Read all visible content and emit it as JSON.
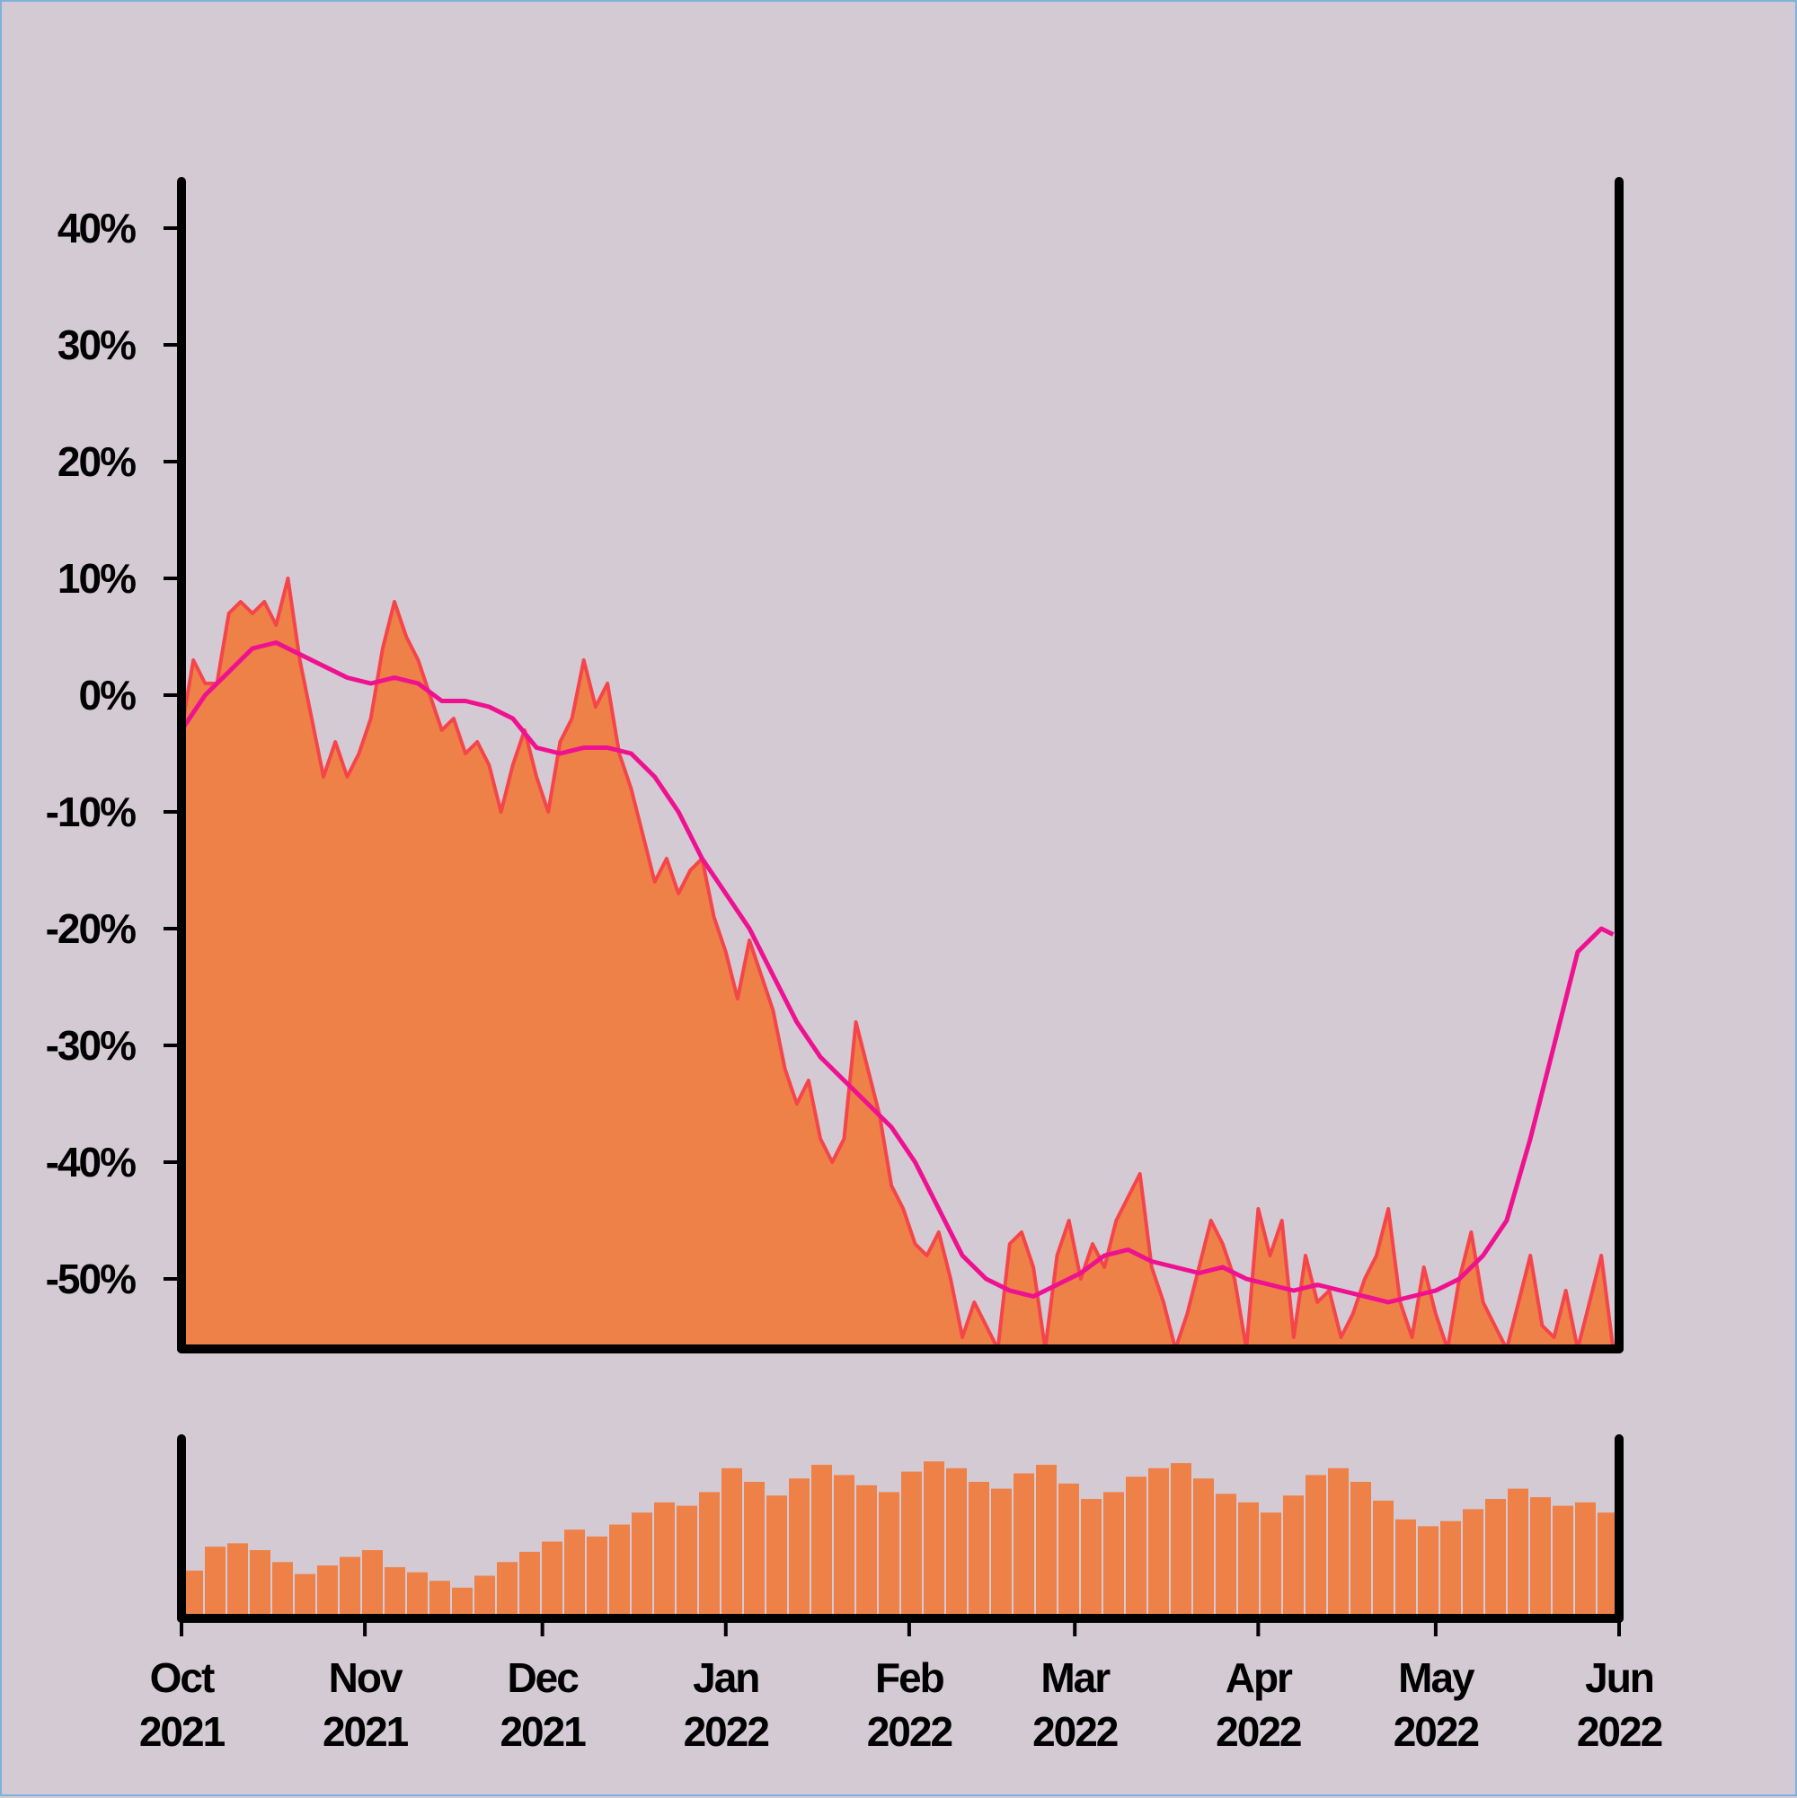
{
  "chart_data": {
    "type": "area",
    "colors": {
      "background": "#d4cad3",
      "area_fill": "#ee8147",
      "area_edge": "#f5454a",
      "moving_average": "#ee1290",
      "volume": "#ee8147",
      "axes": "#000000"
    },
    "y_axis": {
      "unit": "%",
      "ylim": [
        -56,
        44
      ],
      "ticks": [
        40,
        30,
        20,
        10,
        0,
        -10,
        -20,
        -30,
        -40,
        -50
      ],
      "tick_labels": [
        "40%",
        "30%",
        "20%",
        "10%",
        "0%",
        "-10%",
        "-20%",
        "-30%",
        "-40%",
        "-50%"
      ]
    },
    "x_axis": {
      "range": [
        "2021-10-01",
        "2022-06-01"
      ],
      "ticks": [
        {
          "date": "2021-10-01",
          "month": "Oct",
          "year": "2021"
        },
        {
          "date": "2021-11-01",
          "month": "Nov",
          "year": "2021"
        },
        {
          "date": "2021-12-01",
          "month": "Dec",
          "year": "2021"
        },
        {
          "date": "2022-01-01",
          "month": "Jan",
          "year": "2022"
        },
        {
          "date": "2022-02-01",
          "month": "Feb",
          "year": "2022"
        },
        {
          "date": "2022-03-01",
          "month": "Mar",
          "year": "2022"
        },
        {
          "date": "2022-04-01",
          "month": "Apr",
          "year": "2022"
        },
        {
          "date": "2022-05-01",
          "month": "May",
          "year": "2022"
        },
        {
          "date": "2022-06-01",
          "month": "Jun",
          "year": "2022"
        }
      ]
    },
    "series": [
      {
        "type": "area",
        "values": [
          [
            "2021-10-01",
            -3
          ],
          [
            "2021-10-03",
            3
          ],
          [
            "2021-10-05",
            1
          ],
          [
            "2021-10-07",
            1
          ],
          [
            "2021-10-09",
            7
          ],
          [
            "2021-10-11",
            8
          ],
          [
            "2021-10-13",
            7
          ],
          [
            "2021-10-15",
            8
          ],
          [
            "2021-10-17",
            6
          ],
          [
            "2021-10-19",
            10
          ],
          [
            "2021-10-21",
            3
          ],
          [
            "2021-10-23",
            -2
          ],
          [
            "2021-10-25",
            -7
          ],
          [
            "2021-10-27",
            -4
          ],
          [
            "2021-10-29",
            -7
          ],
          [
            "2021-10-31",
            -5
          ],
          [
            "2021-11-02",
            -2
          ],
          [
            "2021-11-04",
            4
          ],
          [
            "2021-11-06",
            8
          ],
          [
            "2021-11-08",
            5
          ],
          [
            "2021-11-10",
            3
          ],
          [
            "2021-11-12",
            0
          ],
          [
            "2021-11-14",
            -3
          ],
          [
            "2021-11-16",
            -2
          ],
          [
            "2021-11-18",
            -5
          ],
          [
            "2021-11-20",
            -4
          ],
          [
            "2021-11-22",
            -6
          ],
          [
            "2021-11-24",
            -10
          ],
          [
            "2021-11-26",
            -6
          ],
          [
            "2021-11-28",
            -3
          ],
          [
            "2021-11-30",
            -7
          ],
          [
            "2021-12-02",
            -10
          ],
          [
            "2021-12-04",
            -4
          ],
          [
            "2021-12-06",
            -2
          ],
          [
            "2021-12-08",
            3
          ],
          [
            "2021-12-10",
            -1
          ],
          [
            "2021-12-12",
            1
          ],
          [
            "2021-12-14",
            -5
          ],
          [
            "2021-12-16",
            -8
          ],
          [
            "2021-12-18",
            -12
          ],
          [
            "2021-12-20",
            -16
          ],
          [
            "2021-12-22",
            -14
          ],
          [
            "2021-12-24",
            -17
          ],
          [
            "2021-12-26",
            -15
          ],
          [
            "2021-12-28",
            -14
          ],
          [
            "2021-12-30",
            -19
          ],
          [
            "2022-01-01",
            -22
          ],
          [
            "2022-01-03",
            -26
          ],
          [
            "2022-01-05",
            -21
          ],
          [
            "2022-01-07",
            -24
          ],
          [
            "2022-01-09",
            -27
          ],
          [
            "2022-01-11",
            -32
          ],
          [
            "2022-01-13",
            -35
          ],
          [
            "2022-01-15",
            -33
          ],
          [
            "2022-01-17",
            -38
          ],
          [
            "2022-01-19",
            -40
          ],
          [
            "2022-01-21",
            -38
          ],
          [
            "2022-01-23",
            -28
          ],
          [
            "2022-01-25",
            -32
          ],
          [
            "2022-01-27",
            -36
          ],
          [
            "2022-01-29",
            -42
          ],
          [
            "2022-01-31",
            -44
          ],
          [
            "2022-02-02",
            -47
          ],
          [
            "2022-02-04",
            -48
          ],
          [
            "2022-02-06",
            -46
          ],
          [
            "2022-02-08",
            -50
          ],
          [
            "2022-02-10",
            -55
          ],
          [
            "2022-02-12",
            -52
          ],
          [
            "2022-02-14",
            -54
          ],
          [
            "2022-02-16",
            -56
          ],
          [
            "2022-02-18",
            -47
          ],
          [
            "2022-02-20",
            -46
          ],
          [
            "2022-02-22",
            -49
          ],
          [
            "2022-02-24",
            -56
          ],
          [
            "2022-02-26",
            -48
          ],
          [
            "2022-02-28",
            -45
          ],
          [
            "2022-03-02",
            -50
          ],
          [
            "2022-03-04",
            -47
          ],
          [
            "2022-03-06",
            -49
          ],
          [
            "2022-03-08",
            -45
          ],
          [
            "2022-03-10",
            -43
          ],
          [
            "2022-03-12",
            -41
          ],
          [
            "2022-03-14",
            -49
          ],
          [
            "2022-03-16",
            -52
          ],
          [
            "2022-03-18",
            -56
          ],
          [
            "2022-03-20",
            -53
          ],
          [
            "2022-03-22",
            -49
          ],
          [
            "2022-03-24",
            -45
          ],
          [
            "2022-03-26",
            -47
          ],
          [
            "2022-03-28",
            -50
          ],
          [
            "2022-03-30",
            -56
          ],
          [
            "2022-04-01",
            -44
          ],
          [
            "2022-04-03",
            -48
          ],
          [
            "2022-04-05",
            -45
          ],
          [
            "2022-04-07",
            -55
          ],
          [
            "2022-04-09",
            -48
          ],
          [
            "2022-04-11",
            -52
          ],
          [
            "2022-04-13",
            -51
          ],
          [
            "2022-04-15",
            -55
          ],
          [
            "2022-04-17",
            -53
          ],
          [
            "2022-04-19",
            -50
          ],
          [
            "2022-04-21",
            -48
          ],
          [
            "2022-04-23",
            -44
          ],
          [
            "2022-04-25",
            -52
          ],
          [
            "2022-04-27",
            -55
          ],
          [
            "2022-04-29",
            -49
          ],
          [
            "2022-05-01",
            -53
          ],
          [
            "2022-05-03",
            -56
          ],
          [
            "2022-05-05",
            -50
          ],
          [
            "2022-05-07",
            -46
          ],
          [
            "2022-05-09",
            -52
          ],
          [
            "2022-05-11",
            -54
          ],
          [
            "2022-05-13",
            -56
          ],
          [
            "2022-05-15",
            -52
          ],
          [
            "2022-05-17",
            -48
          ],
          [
            "2022-05-19",
            -54
          ],
          [
            "2022-05-21",
            -55
          ],
          [
            "2022-05-23",
            -51
          ],
          [
            "2022-05-25",
            -56
          ],
          [
            "2022-05-27",
            -52
          ],
          [
            "2022-05-29",
            -48
          ],
          [
            "2022-05-31",
            -56
          ]
        ]
      },
      {
        "type": "line",
        "values": [
          [
            "2021-10-01",
            -3
          ],
          [
            "2021-10-05",
            0
          ],
          [
            "2021-10-09",
            2
          ],
          [
            "2021-10-13",
            4
          ],
          [
            "2021-10-17",
            4.5
          ],
          [
            "2021-10-21",
            3.5
          ],
          [
            "2021-10-25",
            2.5
          ],
          [
            "2021-10-29",
            1.5
          ],
          [
            "2021-11-02",
            1
          ],
          [
            "2021-11-06",
            1.5
          ],
          [
            "2021-11-10",
            1
          ],
          [
            "2021-11-14",
            -0.5
          ],
          [
            "2021-11-18",
            -0.5
          ],
          [
            "2021-11-22",
            -1
          ],
          [
            "2021-11-26",
            -2
          ],
          [
            "2021-11-30",
            -4.5
          ],
          [
            "2021-12-04",
            -5
          ],
          [
            "2021-12-08",
            -4.5
          ],
          [
            "2021-12-12",
            -4.5
          ],
          [
            "2021-12-16",
            -5
          ],
          [
            "2021-12-20",
            -7
          ],
          [
            "2021-12-24",
            -10
          ],
          [
            "2021-12-28",
            -14
          ],
          [
            "2022-01-01",
            -17
          ],
          [
            "2022-01-05",
            -20
          ],
          [
            "2022-01-09",
            -24
          ],
          [
            "2022-01-13",
            -28
          ],
          [
            "2022-01-17",
            -31
          ],
          [
            "2022-01-21",
            -33
          ],
          [
            "2022-01-25",
            -35
          ],
          [
            "2022-01-29",
            -37
          ],
          [
            "2022-02-02",
            -40
          ],
          [
            "2022-02-06",
            -44
          ],
          [
            "2022-02-10",
            -48
          ],
          [
            "2022-02-14",
            -50
          ],
          [
            "2022-02-18",
            -51
          ],
          [
            "2022-02-22",
            -51.5
          ],
          [
            "2022-02-26",
            -50.5
          ],
          [
            "2022-03-02",
            -49.5
          ],
          [
            "2022-03-06",
            -48
          ],
          [
            "2022-03-10",
            -47.5
          ],
          [
            "2022-03-14",
            -48.5
          ],
          [
            "2022-03-18",
            -49
          ],
          [
            "2022-03-22",
            -49.5
          ],
          [
            "2022-03-26",
            -49
          ],
          [
            "2022-03-30",
            -50
          ],
          [
            "2022-04-03",
            -50.5
          ],
          [
            "2022-04-07",
            -51
          ],
          [
            "2022-04-11",
            -50.5
          ],
          [
            "2022-04-15",
            -51
          ],
          [
            "2022-04-19",
            -51.5
          ],
          [
            "2022-04-23",
            -52
          ],
          [
            "2022-04-27",
            -51.5
          ],
          [
            "2022-05-01",
            -51
          ],
          [
            "2022-05-05",
            -50
          ],
          [
            "2022-05-09",
            -48
          ],
          [
            "2022-05-13",
            -45
          ],
          [
            "2022-05-17",
            -38
          ],
          [
            "2022-05-21",
            -30
          ],
          [
            "2022-05-25",
            -22
          ],
          [
            "2022-05-29",
            -20
          ],
          [
            "2022-05-31",
            -20.5
          ]
        ]
      }
    ],
    "volume": {
      "type": "bar",
      "range": [
        0,
        1
      ],
      "values": [
        0.28,
        0.42,
        0.44,
        0.4,
        0.33,
        0.26,
        0.31,
        0.36,
        0.4,
        0.3,
        0.27,
        0.22,
        0.18,
        0.25,
        0.33,
        0.39,
        0.45,
        0.52,
        0.48,
        0.55,
        0.62,
        0.68,
        0.66,
        0.74,
        0.88,
        0.8,
        0.72,
        0.82,
        0.9,
        0.84,
        0.78,
        0.74,
        0.86,
        0.92,
        0.88,
        0.8,
        0.76,
        0.85,
        0.9,
        0.79,
        0.7,
        0.74,
        0.83,
        0.88,
        0.91,
        0.82,
        0.73,
        0.68,
        0.62,
        0.72,
        0.84,
        0.88,
        0.8,
        0.69,
        0.58,
        0.54,
        0.57,
        0.64,
        0.7,
        0.76,
        0.71,
        0.66,
        0.68,
        0.62
      ]
    }
  }
}
